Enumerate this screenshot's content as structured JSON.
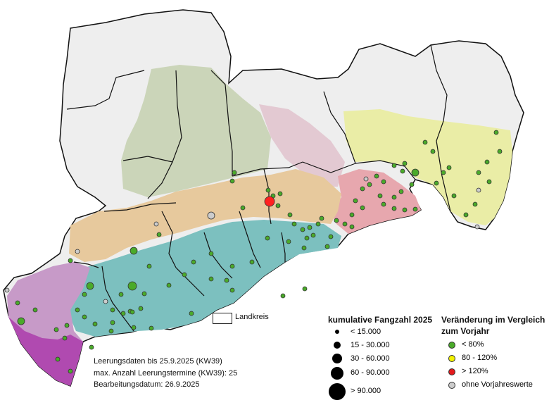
{
  "notes": {
    "line1": "Leerungsdaten bis 25.9.2025 (KW39)",
    "line2": "max. Anzahl Leerungstermine (KW39): 25",
    "line3": "Bearbeitungsdatum: 26.9.2025"
  },
  "landkreis_label": "Landkreis",
  "legend_size": {
    "title": "kumulative Fangzahl 2025",
    "classes": [
      "< 15.000",
      "15 - 30.000",
      "30 - 60.000",
      "60 - 90.000",
      "> 90.000"
    ]
  },
  "legend_change": {
    "title_line1": "Veränderung im Vergleich",
    "title_line2": "zum Vorjahr",
    "classes": [
      {
        "label": "< 80%",
        "color": "#4aaa2a"
      },
      {
        "label": "80 - 120%",
        "color": "#f2f200"
      },
      {
        "label": "> 120%",
        "color": "#e31a1c"
      },
      {
        "label": "ohne Vorjahreswerte",
        "color": "#cccccc"
      }
    ]
  },
  "colors": {
    "point_green": "#4aaa2a",
    "point_red": "#ff2020",
    "point_grey": "#cccccc",
    "zone_sage": "#c6d2b2",
    "zone_tan": "#e7c99d",
    "zone_teal": "#7cc0bf",
    "zone_purple": "#c79ac8",
    "zone_magenta": "#b04ab0",
    "zone_pink": "#e7a7ae",
    "zone_lightpink": "#e2c6d0",
    "zone_yellow": "#eaeda6",
    "zone_white": "#f1f1f1"
  }
}
